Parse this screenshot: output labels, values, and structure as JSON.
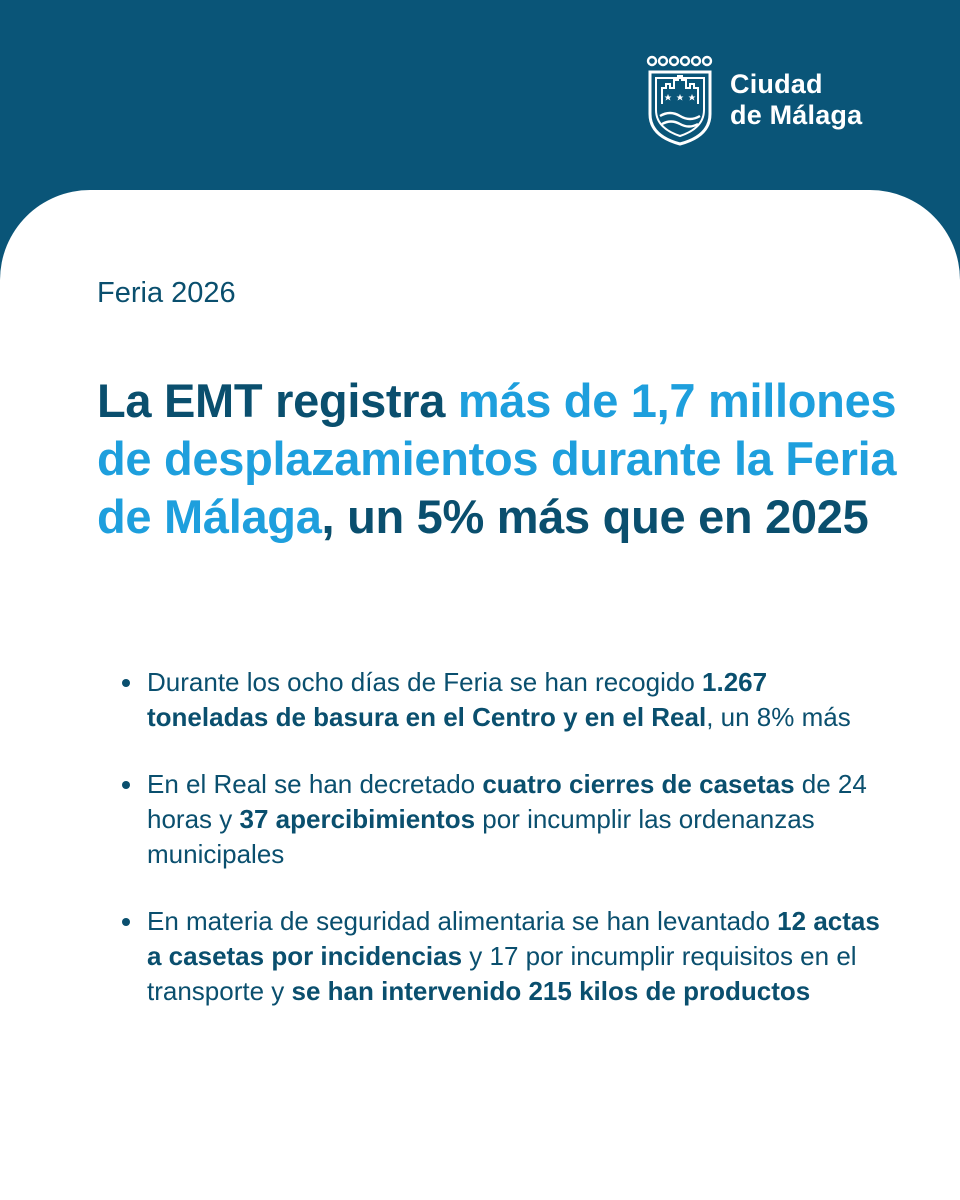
{
  "brand": {
    "logo_icon": "city-shield-icon",
    "name_line1": "Ciudad",
    "name_line2": "de Málaga"
  },
  "colors": {
    "header_bg": "#0a5578",
    "text_dark": "#0a4f6e",
    "accent": "#1e9fdd",
    "card_bg": "#ffffff"
  },
  "tag": "Feria 2026",
  "headline": {
    "part1": "La EMT registra ",
    "highlight": "más de 1,7 millones de desplazamientos durante la Feria de Málaga",
    "part2": ", un 5% más que en 2025"
  },
  "bullets": [
    {
      "t1": "Durante los ocho días de Feria se han recogido ",
      "b1": "1.267 toneladas de basura en el Centro y en el Real",
      "t2": ", un 8% más"
    },
    {
      "t1": "En el Real se han decretado ",
      "b1": "cuatro cierres de casetas",
      "t2": " de 24 horas y ",
      "b2": "37 apercibimientos",
      "t3": " por incumplir las ordenanzas municipales"
    },
    {
      "t1": "En materia de seguridad alimentaria se han levantado ",
      "b1": "12 actas a casetas por incidencias",
      "t2": " y 17 por incumplir requisitos en el transporte y ",
      "b2": "se han intervenido 215 kilos de productos"
    }
  ]
}
